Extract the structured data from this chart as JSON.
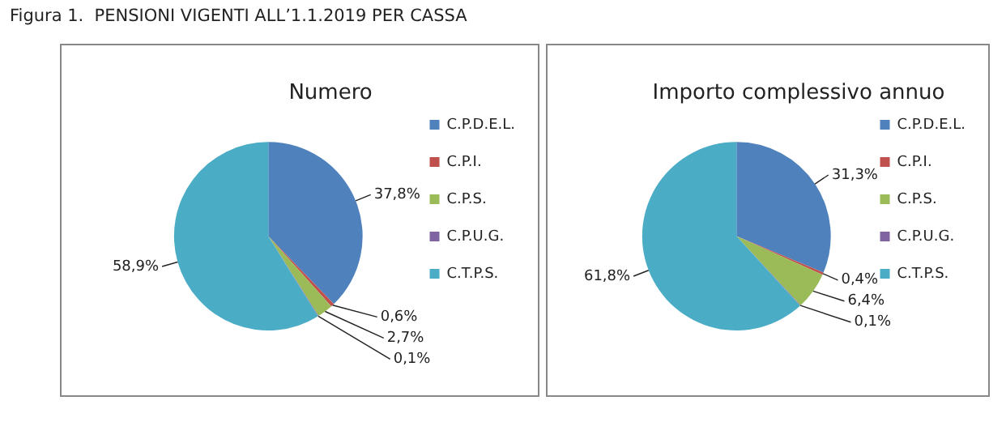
{
  "chart_data": [
    {
      "type": "other",
      "title": "Figura 1.  PENSIONI VIGENTI ALL’1.1.2019 PER CASSA"
    },
    {
      "type": "pie",
      "title": "Numero",
      "categories": [
        "C.P.D.E.L.",
        "C.P.I.",
        "C.P.S.",
        "C.P.U.G.",
        "C.T.P.S."
      ],
      "values": [
        37.8,
        0.6,
        2.7,
        0.1,
        58.9
      ],
      "value_labels": [
        "37,8%",
        "0,6%",
        "2,7%",
        "0,1%",
        "58,9%"
      ],
      "colors": [
        "#4f81bd",
        "#c0504d",
        "#9bbb59",
        "#8064a2",
        "#4bacc6"
      ],
      "legend": "right"
    },
    {
      "type": "pie",
      "title": "Importo complessivo annuo",
      "categories": [
        "C.P.D.E.L.",
        "C.P.I.",
        "C.P.S.",
        "C.P.U.G.",
        "C.T.P.S."
      ],
      "values": [
        31.3,
        0.4,
        6.4,
        0.1,
        61.8
      ],
      "value_labels": [
        "31,3%",
        "0,4%",
        "6,4%",
        "0,1%",
        "61,8%"
      ],
      "colors": [
        "#4f81bd",
        "#c0504d",
        "#9bbb59",
        "#8064a2",
        "#4bacc6"
      ],
      "legend": "right"
    }
  ]
}
